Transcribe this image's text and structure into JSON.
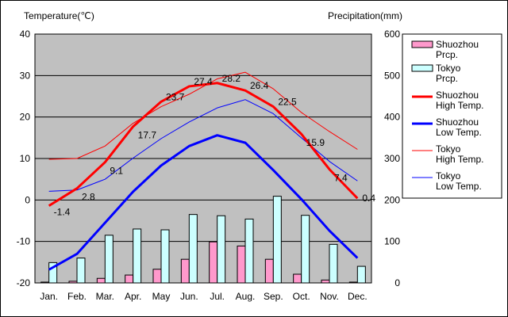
{
  "chart_data": {
    "type": "line",
    "ylabel_left": "Temperature(℃)",
    "ylabel_right": "Precipitation(mm)",
    "categories": [
      "Jan.",
      "Feb.",
      "Mar.",
      "Apr.",
      "May",
      "Jun.",
      "Jul.",
      "Aug.",
      "Sep.",
      "Oct.",
      "Nov.",
      "Dec."
    ],
    "ylim_left": [
      -20,
      40
    ],
    "ylim_right": [
      0,
      600
    ],
    "yticks_left": [
      "40",
      "30",
      "20",
      "10",
      "0",
      "-10",
      "-20"
    ],
    "yticks_right": [
      "600",
      "500",
      "400",
      "300",
      "200",
      "100",
      "0"
    ],
    "grid": true,
    "legend_position": "right",
    "series": [
      {
        "name": "Shuozhou Prcp.",
        "kind": "bar",
        "axis": "right",
        "color": "#ff99cc",
        "values": [
          2,
          4,
          11,
          19,
          33,
          57,
          99,
          89,
          57,
          21,
          7,
          2
        ]
      },
      {
        "name": "Tokyo Prcp.",
        "kind": "bar",
        "axis": "right",
        "color": "#ccffff",
        "values": [
          49,
          60,
          115,
          130,
          128,
          165,
          162,
          154,
          209,
          163,
          93,
          40
        ]
      },
      {
        "name": "Shuozhou High Temp.",
        "kind": "line",
        "axis": "left",
        "color": "#ff0000",
        "width": 3,
        "values": [
          -1.4,
          2.8,
          9.1,
          17.7,
          23.7,
          27.4,
          28.2,
          26.4,
          22.5,
          15.9,
          7.4,
          0.4
        ]
      },
      {
        "name": "Shuozhou Low Temp.",
        "kind": "line",
        "axis": "left",
        "color": "#0000ff",
        "width": 3,
        "values": [
          -16.8,
          -13,
          -5.5,
          2,
          8.3,
          13,
          15.6,
          13.8,
          7.2,
          0.2,
          -7.4,
          -14
        ]
      },
      {
        "name": "Tokyo High Temp.",
        "kind": "line",
        "axis": "left",
        "color": "#ff0000",
        "width": 1,
        "values": [
          9.8,
          10,
          13,
          18.5,
          22.5,
          25.5,
          29.2,
          30.8,
          26.8,
          21.1,
          16.5,
          12.2
        ]
      },
      {
        "name": "Tokyo Low Temp.",
        "kind": "line",
        "axis": "left",
        "color": "#0000ff",
        "width": 1,
        "values": [
          2.1,
          2.4,
          5,
          10.1,
          14.8,
          18.8,
          22.2,
          24.2,
          20.8,
          15,
          9.3,
          4.6
        ]
      }
    ],
    "data_labels": [
      "-1.4",
      "2.8",
      "9.1",
      "17.7",
      "23.7",
      "27.4",
      "28.2",
      "26.4",
      "22.5",
      "15.9",
      "7.4",
      "0.4"
    ],
    "legend": [
      {
        "label": "Shuozhou Prcp.",
        "swatch": "bar",
        "color": "#ff99cc"
      },
      {
        "label": "Tokyo Prcp.",
        "swatch": "bar",
        "color": "#ccffff"
      },
      {
        "label": "Shuozhou High Temp.",
        "swatch": "line",
        "color": "#ff0000",
        "width": 3
      },
      {
        "label": "Shuozhou Low Temp.",
        "swatch": "line",
        "color": "#0000ff",
        "width": 3
      },
      {
        "label": "Tokyo High Temp.",
        "swatch": "line",
        "color": "#ff0000",
        "width": 1
      },
      {
        "label": "Tokyo Low Temp.",
        "swatch": "line",
        "color": "#0000ff",
        "width": 1
      }
    ]
  }
}
